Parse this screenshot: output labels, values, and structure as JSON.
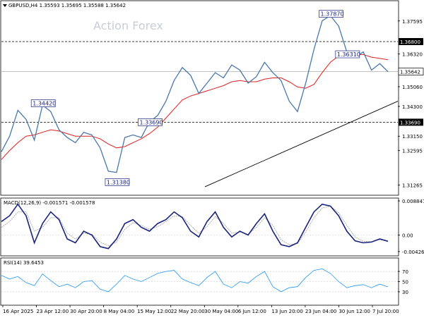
{
  "chart_data": {
    "type": "line",
    "symbol_label": "GBPUSD,H4  1.35593 1.35695 1.35588 1.35642",
    "watermark": "Action Forex",
    "price_axis": {
      "ticks": [
        "1.37595",
        "1.36320",
        "1.35060",
        "1.34300",
        "1.33150",
        "1.32595",
        "1.31265"
      ],
      "ylim": [
        1.309,
        1.3835
      ]
    },
    "current_price_label": "1.35642",
    "current_price": 1.35642,
    "levels": [
      {
        "label": "1.36800",
        "value": 1.368
      },
      {
        "label": "1.33690",
        "value": 1.3369
      }
    ],
    "annotations": [
      {
        "label": "1.37870",
        "value": 1.3787
      },
      {
        "label": "1.36310",
        "value": 1.3631
      },
      {
        "label": "1.34420",
        "value": 1.3442
      },
      {
        "label": "1.33690",
        "value": 1.3369
      },
      {
        "label": "1.31380",
        "value": 1.3138
      }
    ],
    "date_ticks": [
      "16 Apr 2025",
      "23 Apr 12:00",
      "30 Apr 20:00",
      "8 May 04:00",
      "15 May 12:00",
      "22 May 20:00",
      "30 May 04:00",
      "6 Jun 12:00",
      "13 Jun 20:00",
      "23 Jun 04:00",
      "30 Jun 12:00",
      "7 Jul 20:00"
    ],
    "price_series": [
      1.3255,
      1.3315,
      1.3415,
      1.338,
      1.33,
      1.3435,
      1.341,
      1.334,
      1.331,
      1.329,
      1.333,
      1.332,
      1.327,
      1.318,
      1.3175,
      1.331,
      1.332,
      1.331,
      1.337,
      1.3395,
      1.345,
      1.353,
      1.358,
      1.355,
      1.348,
      1.352,
      1.356,
      1.354,
      1.359,
      1.357,
      1.352,
      1.3545,
      1.36,
      1.356,
      1.353,
      1.345,
      1.341,
      1.352,
      1.365,
      1.376,
      1.378,
      1.374,
      1.364,
      1.362,
      1.364,
      1.357,
      1.3595,
      1.3564
    ],
    "ma_series": [
      1.3225,
      1.326,
      1.329,
      1.3315,
      1.332,
      1.333,
      1.334,
      1.3335,
      1.3325,
      1.3315,
      1.3315,
      1.3315,
      1.3305,
      1.3285,
      1.327,
      1.3275,
      1.329,
      1.3305,
      1.3325,
      1.335,
      1.3385,
      1.342,
      1.3455,
      1.347,
      1.348,
      1.349,
      1.35,
      1.351,
      1.3525,
      1.353,
      1.3525,
      1.3525,
      1.3535,
      1.354,
      1.354,
      1.3525,
      1.3505,
      1.35,
      1.3515,
      1.356,
      1.36,
      1.3625,
      1.363,
      1.363,
      1.363,
      1.362,
      1.3615,
      1.361
    ],
    "trendline": {
      "start": 1.312,
      "end": 1.345
    },
    "macd": {
      "label": "MACD(12,26,9) -0.001571 -0.001578",
      "ticks": [
        "0.008847",
        "0.00",
        "-0.004262"
      ],
      "ylim": [
        -0.0052,
        0.0094
      ],
      "macd_series": [
        0.0035,
        0.005,
        0.008,
        0.005,
        -0.002,
        0.003,
        0.006,
        0.004,
        -0.001,
        -0.002,
        0.001,
        0.0,
        -0.003,
        -0.0035,
        -0.001,
        0.003,
        0.004,
        0.002,
        0.001,
        0.003,
        0.004,
        0.006,
        0.0045,
        0.001,
        -0.0005,
        0.0035,
        0.006,
        0.002,
        -0.0005,
        0.001,
        0.0,
        0.003,
        0.0055,
        0.001,
        -0.0025,
        -0.003,
        -0.002,
        0.002,
        0.006,
        0.008,
        0.0075,
        0.005,
        0.001,
        -0.0015,
        -0.002,
        -0.0018,
        -0.001,
        -0.0016
      ],
      "signal_series": [
        0.002,
        0.0035,
        0.006,
        0.006,
        0.001,
        0.002,
        0.0045,
        0.0045,
        0.0005,
        -0.001,
        0.0005,
        0.0002,
        -0.0018,
        -0.0028,
        -0.0018,
        0.0015,
        0.0032,
        0.0025,
        0.0015,
        0.0022,
        0.0035,
        0.005,
        0.0048,
        0.0025,
        0.0005,
        0.0022,
        0.0048,
        0.003,
        0.0005,
        0.0008,
        0.0002,
        0.002,
        0.0045,
        0.0025,
        -0.0012,
        -0.0025,
        -0.0022,
        0.0008,
        0.0045,
        0.007,
        0.0075,
        0.0058,
        0.0025,
        -0.0005,
        -0.0016,
        -0.0017,
        -0.0012,
        -0.0016
      ]
    },
    "rsi": {
      "label": "RSI(14) 39.6453",
      "ticks": [
        "70",
        "50",
        "30"
      ],
      "ylim": [
        5,
        95
      ],
      "series": [
        62,
        55,
        60,
        48,
        42,
        65,
        52,
        40,
        45,
        38,
        50,
        52,
        35,
        30,
        45,
        62,
        55,
        50,
        58,
        66,
        70,
        72,
        55,
        48,
        42,
        58,
        70,
        45,
        38,
        50,
        47,
        60,
        70,
        40,
        30,
        38,
        40,
        58,
        72,
        75,
        66,
        50,
        38,
        42,
        44,
        38,
        45,
        39.6
      ]
    },
    "colors": {
      "price": "#4a78a8",
      "ma": "#e02020",
      "macd": "#1a237e",
      "signal": "#9e9e9e",
      "rsi": "#2196f3",
      "levels": "#000000",
      "trendline": "#000000",
      "annotation_text": "#1a237e"
    }
  }
}
